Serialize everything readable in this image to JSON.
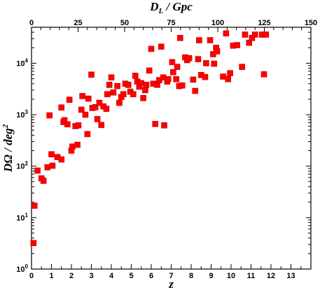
{
  "chart_data": {
    "type": "scatter",
    "title": "",
    "xlabel": "z",
    "ylabel": "DΩ / deg²",
    "x2label": "D_L / Gpc",
    "y_scale": "log",
    "xlim": [
      0,
      14
    ],
    "ylim": [
      1,
      50000
    ],
    "x2lim": [
      0,
      150
    ],
    "x_ticks": [
      0,
      1,
      2,
      3,
      4,
      5,
      6,
      7,
      8,
      9,
      10,
      11,
      12,
      13
    ],
    "x2_ticks": [
      0,
      25,
      50,
      75,
      100,
      125,
      150
    ],
    "y_ticks": [
      1,
      10,
      100,
      1000,
      10000
    ],
    "y_tick_labels": [
      "10^0",
      "10^1",
      "10^2",
      "10^3",
      "10^4"
    ],
    "grid": false,
    "marker_color": "#ff0000",
    "series": [
      {
        "points": [
          [
            0.1,
            3.2
          ],
          [
            0.15,
            17
          ],
          [
            0.3,
            82
          ],
          [
            0.5,
            58
          ],
          [
            0.6,
            52
          ],
          [
            0.8,
            95
          ],
          [
            0.9,
            970
          ],
          [
            1.0,
            170
          ],
          [
            1.05,
            102
          ],
          [
            1.3,
            150
          ],
          [
            1.5,
            135
          ],
          [
            1.5,
            1380
          ],
          [
            1.6,
            720
          ],
          [
            1.65,
            780
          ],
          [
            1.8,
            650
          ],
          [
            1.9,
            1950
          ],
          [
            2.0,
            200
          ],
          [
            2.05,
            240
          ],
          [
            2.2,
            600
          ],
          [
            2.3,
            260
          ],
          [
            2.35,
            620
          ],
          [
            2.5,
            1250
          ],
          [
            2.55,
            2300
          ],
          [
            2.7,
            1000
          ],
          [
            2.8,
            420
          ],
          [
            2.85,
            2050
          ],
          [
            3.0,
            6000
          ],
          [
            3.05,
            1350
          ],
          [
            3.2,
            1400
          ],
          [
            3.3,
            820
          ],
          [
            3.4,
            1700
          ],
          [
            3.5,
            630
          ],
          [
            3.6,
            1450
          ],
          [
            3.75,
            1300
          ],
          [
            3.8,
            2500
          ],
          [
            3.9,
            3800
          ],
          [
            4.0,
            5300
          ],
          [
            4.1,
            2700
          ],
          [
            4.3,
            3600
          ],
          [
            4.4,
            1700
          ],
          [
            4.5,
            2200
          ],
          [
            4.6,
            2500
          ],
          [
            4.7,
            4000
          ],
          [
            4.85,
            3800
          ],
          [
            4.95,
            2800
          ],
          [
            5.1,
            2500
          ],
          [
            5.2,
            5700
          ],
          [
            5.3,
            4400
          ],
          [
            5.4,
            3500
          ],
          [
            5.5,
            4100
          ],
          [
            5.6,
            2100
          ],
          [
            5.7,
            3000
          ],
          [
            5.75,
            3800
          ],
          [
            5.9,
            7200
          ],
          [
            6.0,
            19000
          ],
          [
            6.1,
            4000
          ],
          [
            6.2,
            660
          ],
          [
            6.3,
            3800
          ],
          [
            6.4,
            4700
          ],
          [
            6.5,
            21000
          ],
          [
            6.6,
            5300
          ],
          [
            6.65,
            620
          ],
          [
            6.8,
            4400
          ],
          [
            6.85,
            4900
          ],
          [
            7.05,
            10500
          ],
          [
            7.1,
            6700
          ],
          [
            7.25,
            4900
          ],
          [
            7.3,
            8500
          ],
          [
            7.4,
            3600
          ],
          [
            7.45,
            31000
          ],
          [
            7.55,
            3700
          ],
          [
            7.7,
            13000
          ],
          [
            7.8,
            11500
          ],
          [
            7.9,
            12500
          ],
          [
            8.1,
            4800
          ],
          [
            8.2,
            2900
          ],
          [
            8.35,
            12000
          ],
          [
            8.4,
            28000
          ],
          [
            8.5,
            5900
          ],
          [
            8.7,
            5400
          ],
          [
            8.75,
            10000
          ],
          [
            8.95,
            28000
          ],
          [
            9.1,
            15000
          ],
          [
            9.15,
            9800
          ],
          [
            9.25,
            20000
          ],
          [
            9.3,
            17000
          ],
          [
            9.6,
            5500
          ],
          [
            9.75,
            38000
          ],
          [
            9.85,
            4900
          ],
          [
            9.95,
            6400
          ],
          [
            10.1,
            22000
          ],
          [
            10.3,
            22500
          ],
          [
            10.55,
            8500
          ],
          [
            10.7,
            36000
          ],
          [
            10.9,
            25000
          ],
          [
            11.05,
            31000
          ],
          [
            11.2,
            36000
          ],
          [
            11.55,
            36000
          ],
          [
            11.65,
            6100
          ],
          [
            11.75,
            36000
          ]
        ]
      }
    ]
  }
}
